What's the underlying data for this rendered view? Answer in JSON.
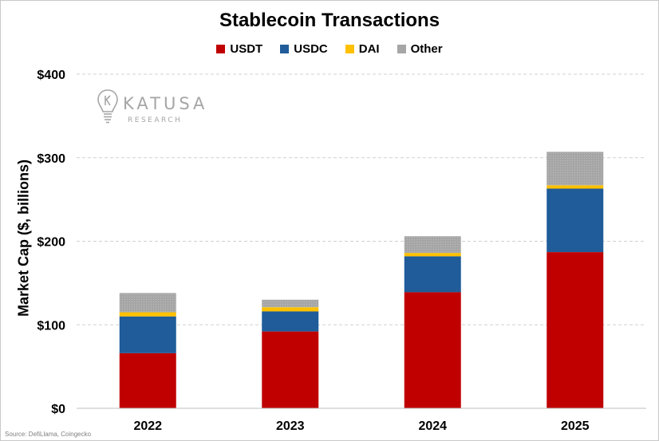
{
  "chart_data": {
    "type": "bar",
    "stacked": true,
    "title": "Stablecoin Transactions",
    "xlabel": "",
    "ylabel": "Market Cap ($, billions)",
    "ylim": [
      0,
      400
    ],
    "yticks": [
      0,
      100,
      200,
      300,
      400
    ],
    "ytick_labels": [
      "$0",
      "$100",
      "$200",
      "$300",
      "$400"
    ],
    "grid": true,
    "legend_position": "top-center",
    "categories": [
      "2022",
      "2023",
      "2024",
      "2025"
    ],
    "series": [
      {
        "name": "USDT",
        "color": "#c00000",
        "values": [
          66,
          92,
          139,
          187
        ]
      },
      {
        "name": "USDC",
        "color": "#1f5c99",
        "values": [
          44,
          24,
          43,
          76
        ]
      },
      {
        "name": "DAI",
        "color": "#ffc000",
        "values": [
          5,
          5,
          4,
          4
        ]
      },
      {
        "name": "Other",
        "color": "#a6a6a6",
        "values": [
          23,
          9,
          20,
          40
        ]
      }
    ],
    "source": "Source: DefiLlama, Coingecko"
  },
  "watermark": {
    "name": "KATUSA",
    "sub": "RESEARCH",
    "icon": "lightbulb-icon"
  }
}
